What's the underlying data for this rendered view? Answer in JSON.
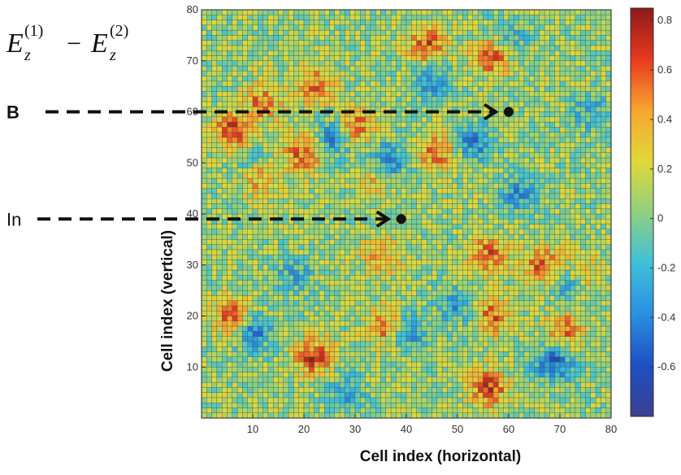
{
  "chart_data": {
    "type": "heatmap",
    "title_formula": {
      "e1": "E",
      "sub1": "z",
      "sup1": "(1)",
      "minus": "−",
      "e2": "E",
      "sub2": "z",
      "sup2": "(2)"
    },
    "xlabel": "Cell index (horizontal)",
    "ylabel": "Cell index (vertical)",
    "xlim": [
      0,
      80
    ],
    "ylim": [
      0,
      80
    ],
    "grid_cells": [
      80,
      80
    ],
    "x_ticks": [
      "10",
      "20",
      "30",
      "40",
      "50",
      "60",
      "70",
      "80"
    ],
    "y_ticks": [
      "10",
      "20",
      "30",
      "40",
      "50",
      "60",
      "70",
      "80"
    ],
    "colorbar": {
      "min": -0.8,
      "max": 0.85,
      "tick_labels": [
        "0.8",
        "0.6",
        "0.4",
        "0.2",
        "0",
        "-0.2",
        "-0.4",
        "-0.6"
      ],
      "tick_values": [
        0.8,
        0.6,
        0.4,
        0.2,
        0,
        -0.2,
        -0.4,
        -0.6
      ],
      "colormap": [
        "#3b3f8f",
        "#1f4fc4",
        "#2a8fe0",
        "#3fc0d8",
        "#8fd080",
        "#e0d83a",
        "#f7a531",
        "#e8391f",
        "#8b1a1a"
      ]
    },
    "hotspots": [
      {
        "x": 11,
        "y": 48,
        "v": 0.6
      },
      {
        "x": 6,
        "y": 56,
        "v": 0.6
      },
      {
        "x": 20,
        "y": 52,
        "v": 0.55
      },
      {
        "x": 30,
        "y": 57,
        "v": 0.55
      },
      {
        "x": 22,
        "y": 65,
        "v": 0.5
      },
      {
        "x": 44,
        "y": 73,
        "v": 0.55
      },
      {
        "x": 57,
        "y": 71,
        "v": 0.6
      },
      {
        "x": 46,
        "y": 52,
        "v": 0.5
      },
      {
        "x": 56,
        "y": 32,
        "v": 0.5
      },
      {
        "x": 67,
        "y": 30,
        "v": 0.55
      },
      {
        "x": 74,
        "y": 28,
        "v": 0.5
      },
      {
        "x": 6,
        "y": 20,
        "v": 0.55
      },
      {
        "x": 22,
        "y": 12,
        "v": 0.6
      },
      {
        "x": 36,
        "y": 18,
        "v": 0.55
      },
      {
        "x": 56,
        "y": 6,
        "v": 0.6
      },
      {
        "x": 57,
        "y": 20,
        "v": 0.5
      },
      {
        "x": 71,
        "y": 17,
        "v": 0.5
      },
      {
        "x": 34,
        "y": 47,
        "v": 0.4
      },
      {
        "x": 12,
        "y": 62,
        "v": 0.45
      },
      {
        "x": 35,
        "y": 32,
        "v": 0.35
      },
      {
        "x": 10,
        "y": 50,
        "v": -0.45
      },
      {
        "x": 26,
        "y": 55,
        "v": -0.5
      },
      {
        "x": 36,
        "y": 50,
        "v": -0.55
      },
      {
        "x": 53,
        "y": 54,
        "v": -0.45
      },
      {
        "x": 45,
        "y": 66,
        "v": -0.4
      },
      {
        "x": 10,
        "y": 17,
        "v": -0.5
      },
      {
        "x": 40,
        "y": 17,
        "v": -0.45
      },
      {
        "x": 69,
        "y": 11,
        "v": -0.6
      },
      {
        "x": 72,
        "y": 27,
        "v": -0.55
      },
      {
        "x": 62,
        "y": 44,
        "v": -0.4
      },
      {
        "x": 50,
        "y": 22,
        "v": -0.35
      },
      {
        "x": 18,
        "y": 28,
        "v": -0.3
      },
      {
        "x": 28,
        "y": 5,
        "v": -0.35
      },
      {
        "x": 60,
        "y": 74,
        "v": -0.35
      },
      {
        "x": 76,
        "y": 60,
        "v": -0.3
      }
    ],
    "annotations": [
      {
        "label": "B",
        "y": 60,
        "target_x": 60
      },
      {
        "label": "In",
        "y": 39,
        "target_x": 39
      }
    ]
  }
}
